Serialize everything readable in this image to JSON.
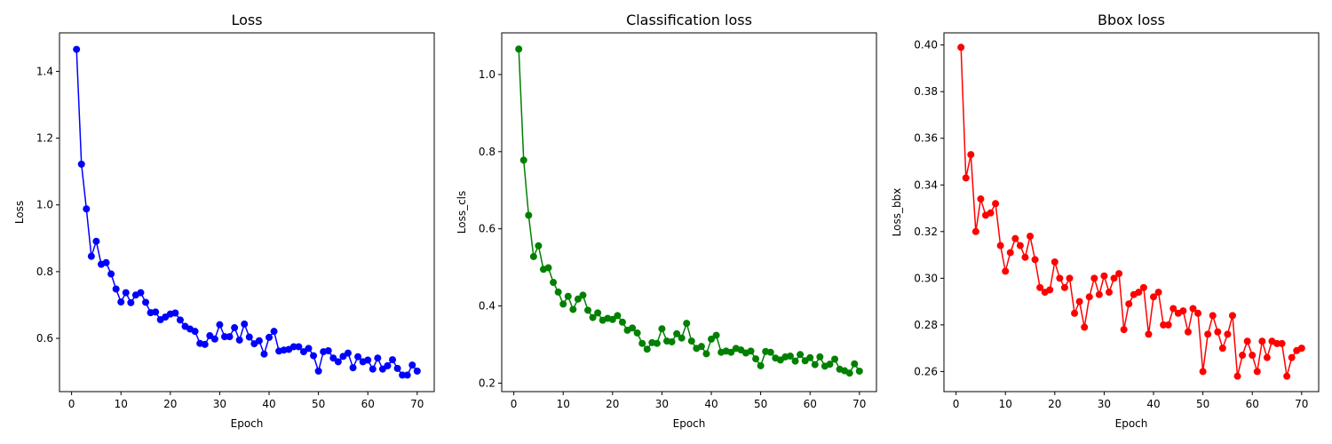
{
  "chart_data": [
    {
      "type": "line",
      "title": "Loss",
      "xlabel": "Epoch",
      "ylabel": "Loss",
      "xlim": [
        -2.45,
        73.45
      ],
      "ylim": [
        0.4405,
        1.5155
      ],
      "xticks": [
        0,
        10,
        20,
        30,
        40,
        50,
        60,
        70
      ],
      "yticks": [
        0.6,
        0.8,
        1.0,
        1.2,
        1.4
      ],
      "ytick_labels": [
        "0.6",
        "0.8",
        "1.0",
        "1.2",
        "1.4"
      ],
      "grid": false,
      "series": [
        {
          "color": "#0000ff",
          "marker": "circle",
          "x": [
            1,
            2,
            3,
            4,
            5,
            6,
            7,
            8,
            9,
            10,
            11,
            12,
            13,
            14,
            15,
            16,
            17,
            18,
            19,
            20,
            21,
            22,
            23,
            24,
            25,
            26,
            27,
            28,
            29,
            30,
            31,
            32,
            33,
            34,
            35,
            36,
            37,
            38,
            39,
            40,
            41,
            42,
            43,
            44,
            45,
            46,
            47,
            48,
            49,
            50,
            51,
            52,
            53,
            54,
            55,
            56,
            57,
            58,
            59,
            60,
            61,
            62,
            63,
            64,
            65,
            66,
            67,
            68,
            69,
            70
          ],
          "y": [
            1.466,
            1.122,
            0.988,
            0.846,
            0.891,
            0.822,
            0.827,
            0.793,
            0.748,
            0.709,
            0.737,
            0.707,
            0.73,
            0.737,
            0.708,
            0.677,
            0.679,
            0.656,
            0.664,
            0.673,
            0.676,
            0.655,
            0.636,
            0.628,
            0.621,
            0.585,
            0.582,
            0.608,
            0.598,
            0.641,
            0.605,
            0.605,
            0.632,
            0.595,
            0.643,
            0.604,
            0.584,
            0.593,
            0.553,
            0.603,
            0.621,
            0.562,
            0.565,
            0.567,
            0.575,
            0.575,
            0.56,
            0.57,
            0.548,
            0.502,
            0.56,
            0.563,
            0.541,
            0.53,
            0.546,
            0.556,
            0.512,
            0.545,
            0.53,
            0.535,
            0.508,
            0.541,
            0.508,
            0.518,
            0.536,
            0.51,
            0.49,
            0.49,
            0.52,
            0.502
          ]
        }
      ]
    },
    {
      "type": "line",
      "title": "Classification loss",
      "xlabel": "Epoch",
      "ylabel": "Loss_cls",
      "xlim": [
        -2.45,
        73.45
      ],
      "ylim": [
        0.178,
        1.108
      ],
      "xticks": [
        0,
        10,
        20,
        30,
        40,
        50,
        60,
        70
      ],
      "yticks": [
        0.2,
        0.4,
        0.6,
        0.8,
        1.0
      ],
      "ytick_labels": [
        "0.2",
        "0.4",
        "0.6",
        "0.8",
        "1.0"
      ],
      "grid": false,
      "series": [
        {
          "color": "#008000",
          "marker": "circle",
          "x": [
            1,
            2,
            3,
            4,
            5,
            6,
            7,
            8,
            9,
            10,
            11,
            12,
            13,
            14,
            15,
            16,
            17,
            18,
            19,
            20,
            21,
            22,
            23,
            24,
            25,
            26,
            27,
            28,
            29,
            30,
            31,
            32,
            33,
            34,
            35,
            36,
            37,
            38,
            39,
            40,
            41,
            42,
            43,
            44,
            45,
            46,
            47,
            48,
            49,
            50,
            51,
            52,
            53,
            54,
            55,
            56,
            57,
            58,
            59,
            60,
            61,
            62,
            63,
            64,
            65,
            66,
            67,
            68,
            69,
            70
          ],
          "y": [
            1.066,
            0.778,
            0.635,
            0.528,
            0.556,
            0.495,
            0.499,
            0.461,
            0.436,
            0.405,
            0.425,
            0.391,
            0.418,
            0.428,
            0.389,
            0.37,
            0.382,
            0.363,
            0.368,
            0.365,
            0.375,
            0.358,
            0.337,
            0.343,
            0.33,
            0.303,
            0.288,
            0.305,
            0.303,
            0.341,
            0.309,
            0.307,
            0.328,
            0.317,
            0.355,
            0.309,
            0.29,
            0.295,
            0.276,
            0.314,
            0.324,
            0.28,
            0.283,
            0.28,
            0.29,
            0.286,
            0.278,
            0.283,
            0.263,
            0.245,
            0.282,
            0.28,
            0.265,
            0.26,
            0.268,
            0.27,
            0.257,
            0.274,
            0.258,
            0.266,
            0.248,
            0.268,
            0.244,
            0.249,
            0.262,
            0.236,
            0.232,
            0.226,
            0.25,
            0.231
          ]
        }
      ]
    },
    {
      "type": "line",
      "title": "Bbox loss",
      "xlabel": "Epoch",
      "ylabel": "Loss_bbx",
      "xlim": [
        -2.45,
        73.45
      ],
      "ylim": [
        0.2514,
        0.4052
      ],
      "xticks": [
        0,
        10,
        20,
        30,
        40,
        50,
        60,
        70
      ],
      "yticks": [
        0.26,
        0.28,
        0.3,
        0.32,
        0.34,
        0.36,
        0.38,
        0.4
      ],
      "ytick_labels": [
        "0.26",
        "0.28",
        "0.30",
        "0.32",
        "0.34",
        "0.36",
        "0.38",
        "0.40"
      ],
      "grid": false,
      "series": [
        {
          "color": "#ff0000",
          "marker": "circle",
          "x": [
            1,
            2,
            3,
            4,
            5,
            6,
            7,
            8,
            9,
            10,
            11,
            12,
            13,
            14,
            15,
            16,
            17,
            18,
            19,
            20,
            21,
            22,
            23,
            24,
            25,
            26,
            27,
            28,
            29,
            30,
            31,
            32,
            33,
            34,
            35,
            36,
            37,
            38,
            39,
            40,
            41,
            42,
            43,
            44,
            45,
            46,
            47,
            48,
            49,
            50,
            51,
            52,
            53,
            54,
            55,
            56,
            57,
            58,
            59,
            60,
            61,
            62,
            63,
            64,
            65,
            66,
            67,
            68,
            69,
            70
          ],
          "y": [
            0.399,
            0.343,
            0.353,
            0.32,
            0.334,
            0.327,
            0.328,
            0.332,
            0.314,
            0.303,
            0.311,
            0.317,
            0.314,
            0.309,
            0.318,
            0.308,
            0.296,
            0.294,
            0.295,
            0.307,
            0.3,
            0.296,
            0.3,
            0.285,
            0.29,
            0.279,
            0.292,
            0.3,
            0.293,
            0.301,
            0.294,
            0.3,
            0.302,
            0.278,
            0.289,
            0.293,
            0.294,
            0.296,
            0.276,
            0.292,
            0.294,
            0.28,
            0.28,
            0.287,
            0.285,
            0.286,
            0.277,
            0.287,
            0.285,
            0.26,
            0.276,
            0.284,
            0.277,
            0.27,
            0.276,
            0.284,
            0.258,
            0.267,
            0.273,
            0.267,
            0.26,
            0.273,
            0.266,
            0.273,
            0.272,
            0.272,
            0.258,
            0.266,
            0.269,
            0.27
          ]
        }
      ]
    }
  ]
}
